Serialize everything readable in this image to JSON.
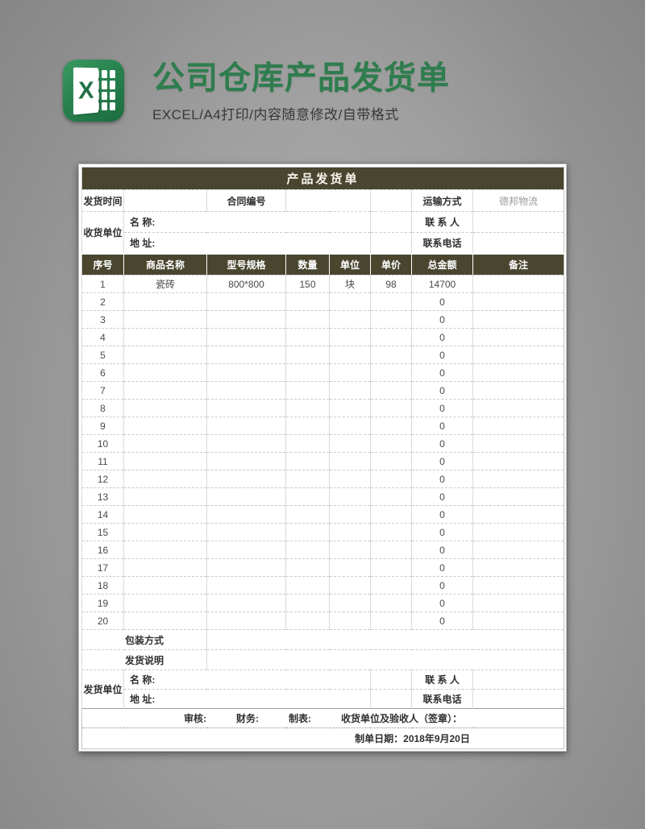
{
  "banner": {
    "title": "公司仓库产品发货单",
    "subtitle": "EXCEL/A4打印/内容随意修改/自带格式",
    "title_color": "#2e7d4e",
    "icon": "excel-icon",
    "icon_letter": "X"
  },
  "sheet": {
    "accent_color": "#49452f",
    "title": "产品发货单",
    "info_top": {
      "ship_time_label": "发货时间",
      "ship_time_value": "",
      "contract_label": "合同编号",
      "contract_value": "",
      "transport_label": "运输方式",
      "transport_value": "德邦物流",
      "receiver_label": "收货单位",
      "name_label": "名 称:",
      "name_value": "",
      "address_label": "地 址:",
      "address_value": "",
      "contact_label": "联 系 人",
      "contact_value": "",
      "phone_label": "联系电话",
      "phone_value": ""
    },
    "table": {
      "columns": [
        "序号",
        "商品名称",
        "型号规格",
        "数量",
        "单位",
        "单价",
        "总金额",
        "备注"
      ],
      "rows": [
        [
          "1",
          "瓷砖",
          "800*800",
          "150",
          "块",
          "98",
          "14700",
          ""
        ],
        [
          "2",
          "",
          "",
          "",
          "",
          "",
          "0",
          ""
        ],
        [
          "3",
          "",
          "",
          "",
          "",
          "",
          "0",
          ""
        ],
        [
          "4",
          "",
          "",
          "",
          "",
          "",
          "0",
          ""
        ],
        [
          "5",
          "",
          "",
          "",
          "",
          "",
          "0",
          ""
        ],
        [
          "6",
          "",
          "",
          "",
          "",
          "",
          "0",
          ""
        ],
        [
          "7",
          "",
          "",
          "",
          "",
          "",
          "0",
          ""
        ],
        [
          "8",
          "",
          "",
          "",
          "",
          "",
          "0",
          ""
        ],
        [
          "9",
          "",
          "",
          "",
          "",
          "",
          "0",
          ""
        ],
        [
          "10",
          "",
          "",
          "",
          "",
          "",
          "0",
          ""
        ],
        [
          "11",
          "",
          "",
          "",
          "",
          "",
          "0",
          ""
        ],
        [
          "12",
          "",
          "",
          "",
          "",
          "",
          "0",
          ""
        ],
        [
          "13",
          "",
          "",
          "",
          "",
          "",
          "0",
          ""
        ],
        [
          "14",
          "",
          "",
          "",
          "",
          "",
          "0",
          ""
        ],
        [
          "15",
          "",
          "",
          "",
          "",
          "",
          "0",
          ""
        ],
        [
          "16",
          "",
          "",
          "",
          "",
          "",
          "0",
          ""
        ],
        [
          "17",
          "",
          "",
          "",
          "",
          "",
          "0",
          ""
        ],
        [
          "18",
          "",
          "",
          "",
          "",
          "",
          "0",
          ""
        ],
        [
          "19",
          "",
          "",
          "",
          "",
          "",
          "0",
          ""
        ],
        [
          "20",
          "",
          "",
          "",
          "",
          "",
          "0",
          ""
        ]
      ]
    },
    "info_bottom": {
      "packing_label": "包装方式",
      "packing_value": "",
      "shipping_note_label": "发货说明",
      "shipping_note_value": "",
      "shipper_label": "发货单位",
      "name_label": "名 称:",
      "name_value": "",
      "address_label": "地 址:",
      "address_value": "",
      "contact_label": "联 系 人",
      "contact_value": "",
      "phone_label": "联系电话",
      "phone_value": ""
    },
    "footer": {
      "audit_label": "审核:",
      "finance_label": "财务:",
      "tabulation_label": "制表:",
      "sign_label": "收货单位及验收人（签章）：",
      "date_label": "制单日期：2018年9月20日"
    }
  }
}
